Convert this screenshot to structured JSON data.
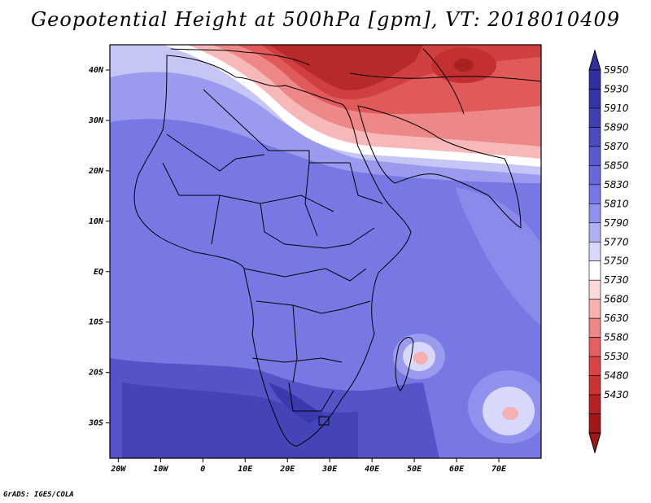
{
  "title": "Geopotential Height at 500hPa [gpm], VT: 2018010409",
  "credit": "GrADS: IGES/COLA",
  "axes": {
    "lat_labels": [
      "40N",
      "30N",
      "20N",
      "10N",
      "EQ",
      "10S",
      "20S",
      "30S"
    ],
    "lat_values": [
      40,
      30,
      20,
      10,
      0,
      -10,
      -20,
      -30
    ],
    "lon_labels": [
      "20W",
      "10W",
      "0",
      "10E",
      "20E",
      "30E",
      "40E",
      "50E",
      "60E",
      "70E"
    ],
    "lon_values": [
      -20,
      -10,
      0,
      10,
      20,
      30,
      40,
      50,
      60,
      70
    ],
    "lat_range": [
      -37,
      45
    ],
    "lon_range": [
      -22,
      80
    ]
  },
  "colorbar": {
    "levels": [
      "5950",
      "5930",
      "5910",
      "5890",
      "5870",
      "5850",
      "5830",
      "5810",
      "5790",
      "5770",
      "5750",
      "5730",
      "5680",
      "5630",
      "5580",
      "5530",
      "5480",
      "5430"
    ],
    "colors": [
      "#3030a0",
      "#3535a8",
      "#4040b4",
      "#4b4bbf",
      "#5a5ad0",
      "#6868dc",
      "#7676e6",
      "#9090ee",
      "#b0b0f4",
      "#d8d8fa",
      "#ffffff",
      "#fcd8d8",
      "#f6b0b0",
      "#ee8888",
      "#e46060",
      "#da4444",
      "#cc3333",
      "#b82222",
      "#a01818"
    ]
  },
  "features": {
    "highs": [
      {
        "label": "",
        "lon": 50.5,
        "lat": -17.5
      },
      {
        "label": "",
        "lon": 72.5,
        "lat": -28.5
      }
    ]
  }
}
